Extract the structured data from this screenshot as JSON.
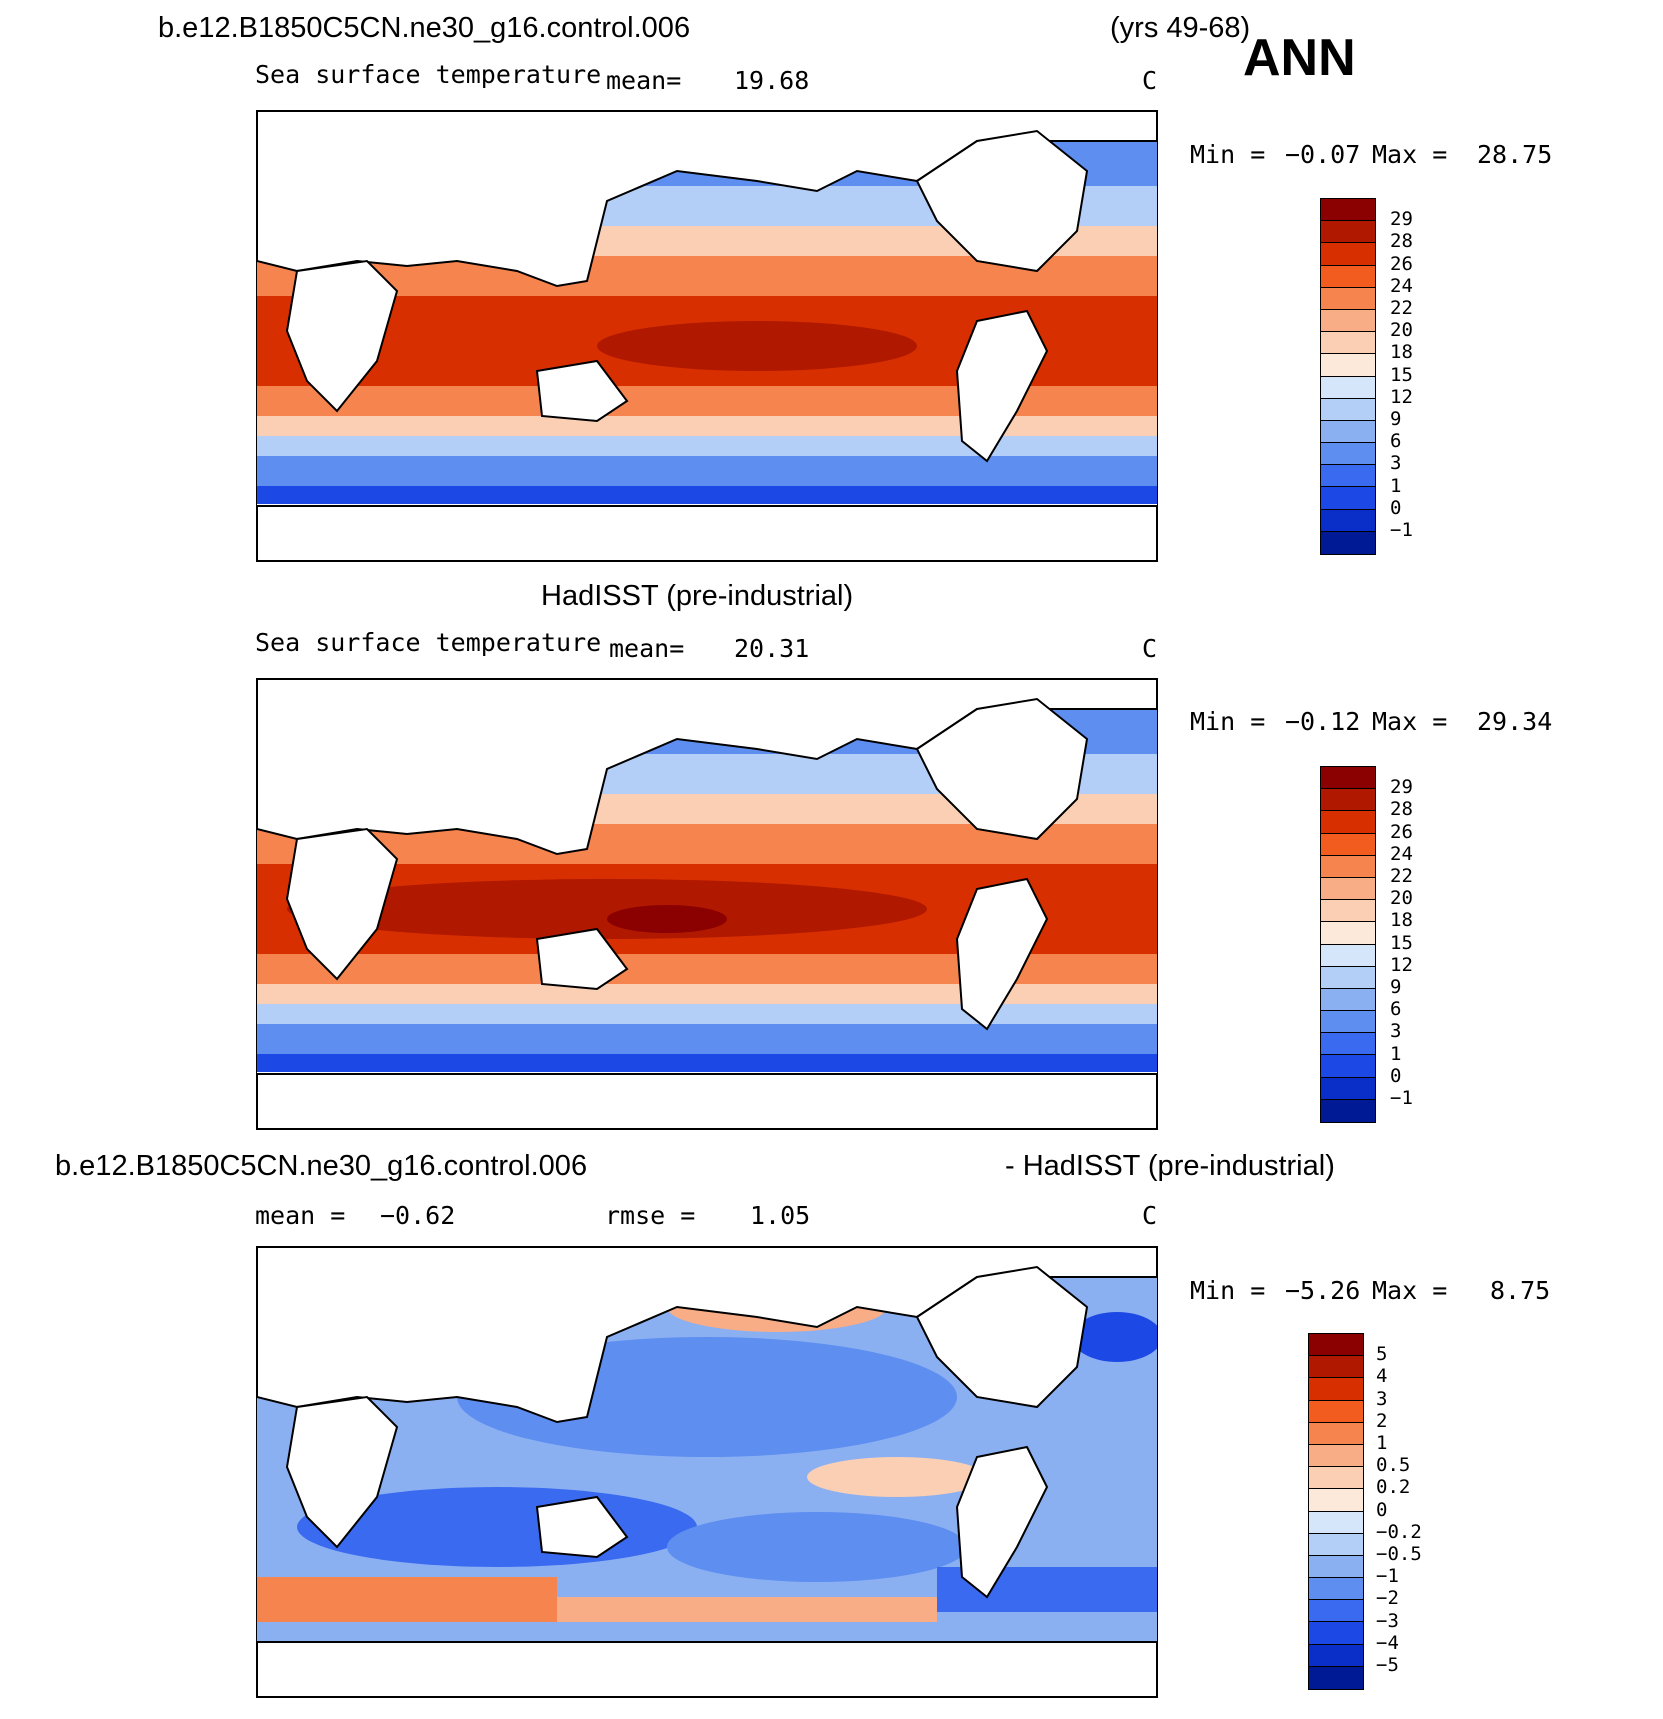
{
  "header": {
    "case_title": "b.e12.B1850C5CN.ne30_g16.control.006",
    "years": "(yrs 49-68)",
    "season": "ANN"
  },
  "panels": [
    {
      "title": "",
      "left_label": "Sea surface temperature",
      "mean_label": "mean=",
      "mean_value": "19.68",
      "units": "C",
      "min_label": "Min =",
      "min_value": "−0.07",
      "max_label": "Max =",
      "max_value": "28.75",
      "colorbar_labels": [
        "29",
        "28",
        "26",
        "24",
        "22",
        "20",
        "18",
        "15",
        "12",
        "9",
        "6",
        "3",
        "1",
        "0",
        "−1"
      ],
      "colorbar_colors": [
        "#8b0000",
        "#b01800",
        "#d82f00",
        "#f25c1e",
        "#f5844f",
        "#f9ad86",
        "#fbcfb4",
        "#fde9d9",
        "#d6e6fa",
        "#b3cef7",
        "#8bb0f2",
        "#5d8ef0",
        "#3a6af0",
        "#1c48e6",
        "#0a2ec8",
        "#001a96"
      ]
    },
    {
      "title": "HadISST (pre-industrial)",
      "left_label": "Sea surface temperature",
      "mean_label": "mean=",
      "mean_value": "20.31",
      "units": "C",
      "min_label": "Min =",
      "min_value": "−0.12",
      "max_label": "Max =",
      "max_value": "29.34",
      "colorbar_labels": [
        "29",
        "28",
        "26",
        "24",
        "22",
        "20",
        "18",
        "15",
        "12",
        "9",
        "6",
        "3",
        "1",
        "0",
        "−1"
      ],
      "colorbar_colors": [
        "#8b0000",
        "#b01800",
        "#d82f00",
        "#f25c1e",
        "#f5844f",
        "#f9ad86",
        "#fbcfb4",
        "#fde9d9",
        "#d6e6fa",
        "#b3cef7",
        "#8bb0f2",
        "#5d8ef0",
        "#3a6af0",
        "#1c48e6",
        "#0a2ec8",
        "#001a96"
      ]
    },
    {
      "title_left": "b.e12.B1850C5CN.ne30_g16.control.006",
      "title_right": "- HadISST (pre-industrial)",
      "mean_label": "mean =",
      "mean_value": "−0.62",
      "rmse_label": "rmse =",
      "rmse_value": "1.05",
      "units": "C",
      "min_label": "Min =",
      "min_value": "−5.26",
      "max_label": "Max =",
      "max_value": "8.75",
      "colorbar_labels": [
        "5",
        "4",
        "3",
        "2",
        "1",
        "0.5",
        "0.2",
        "0",
        "−0.2",
        "−0.5",
        "−1",
        "−2",
        "−3",
        "−4",
        "−5"
      ],
      "colorbar_colors": [
        "#8b0000",
        "#b01800",
        "#d82f00",
        "#f25c1e",
        "#f5844f",
        "#f9ad86",
        "#fbcfb4",
        "#fde9d9",
        "#d6e6fa",
        "#b3cef7",
        "#8bb0f2",
        "#5d8ef0",
        "#3a6af0",
        "#1c48e6",
        "#0a2ec8",
        "#001a96"
      ]
    }
  ]
}
